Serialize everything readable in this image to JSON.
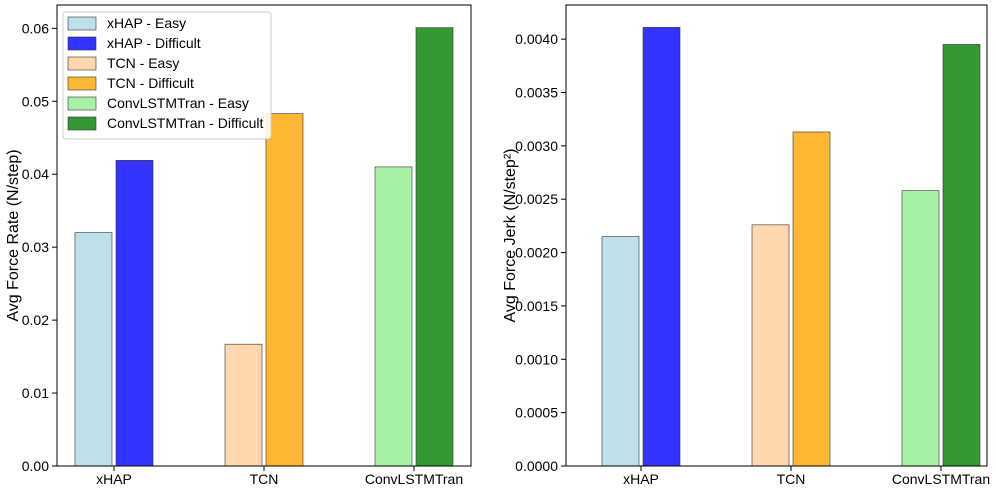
{
  "chart_data": [
    {
      "type": "bar",
      "categories": [
        "xHAP",
        "TCN",
        "ConvLSTMTran"
      ],
      "series": [
        {
          "name": "Easy",
          "values": [
            0.032,
            0.0167,
            0.041
          ]
        },
        {
          "name": "Difficult",
          "values": [
            0.0419,
            0.0483,
            0.0601
          ]
        }
      ],
      "colors": [
        [
          "#add8e6",
          "#0000ff"
        ],
        [
          "#ffcc99",
          "#ffa500"
        ],
        [
          "#90ee90",
          "#008000"
        ]
      ],
      "ylabel": "Avg Force Rate (N/step)",
      "xlabel": "",
      "ylim": [
        0,
        0.0632
      ],
      "yticks": [
        0.0,
        0.01,
        0.02,
        0.03,
        0.04,
        0.05,
        0.06
      ],
      "ytick_labels": [
        "0.00",
        "0.01",
        "0.02",
        "0.03",
        "0.04",
        "0.05",
        "0.06"
      ],
      "legend": {
        "location": "top-left",
        "entries": [
          {
            "label": "xHAP - Easy",
            "color": "#add8e6"
          },
          {
            "label": "xHAP - Difficult",
            "color": "#0000ff"
          },
          {
            "label": "TCN - Easy",
            "color": "#ffcc99"
          },
          {
            "label": "TCN - Difficult",
            "color": "#ffa500"
          },
          {
            "label": "ConvLSTMTran - Easy",
            "color": "#90ee90"
          },
          {
            "label": "ConvLSTMTran - Difficult",
            "color": "#008000"
          }
        ]
      }
    },
    {
      "type": "bar",
      "categories": [
        "xHAP",
        "TCN",
        "ConvLSTMTran"
      ],
      "series": [
        {
          "name": "Easy",
          "values": [
            0.00215,
            0.00226,
            0.00258
          ]
        },
        {
          "name": "Difficult",
          "values": [
            0.00411,
            0.00313,
            0.00395
          ]
        }
      ],
      "colors": [
        [
          "#add8e6",
          "#0000ff"
        ],
        [
          "#ffcc99",
          "#ffa500"
        ],
        [
          "#90ee90",
          "#008000"
        ]
      ],
      "ylabel": "Avg Force Jerk (N/step²)",
      "xlabel": "",
      "ylim": [
        0,
        0.00432
      ],
      "yticks": [
        0,
        0.0005,
        0.001,
        0.0015,
        0.002,
        0.0025,
        0.003,
        0.0035,
        0.004
      ],
      "ytick_labels": [
        "0.0000",
        "0.0005",
        "0.0010",
        "0.0015",
        "0.0020",
        "0.0025",
        "0.0030",
        "0.0035",
        "0.0040"
      ]
    }
  ]
}
